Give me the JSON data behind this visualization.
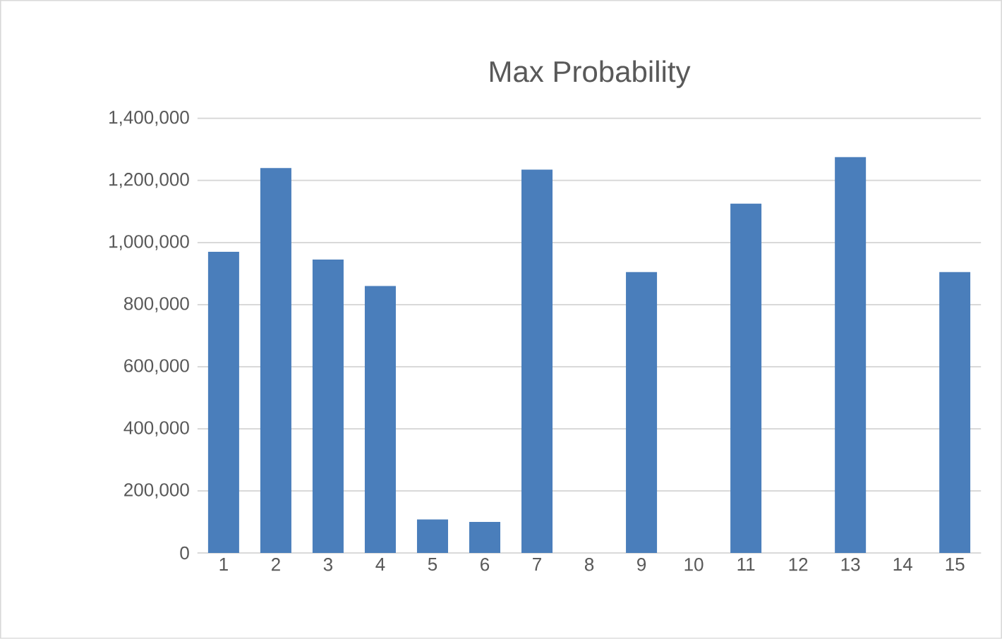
{
  "chart_data": {
    "type": "bar",
    "title": "Max Probability",
    "categories": [
      "1",
      "2",
      "3",
      "4",
      "5",
      "6",
      "7",
      "8",
      "9",
      "10",
      "11",
      "12",
      "13",
      "14",
      "15"
    ],
    "values": [
      970000,
      1240000,
      945000,
      860000,
      108000,
      100000,
      1235000,
      null,
      905000,
      null,
      1125000,
      null,
      1275000,
      null,
      905000
    ],
    "color": "#4a7ebb",
    "ylim": [
      0,
      1400000
    ],
    "yticks": [
      {
        "value": 0,
        "label": "0"
      },
      {
        "value": 200000,
        "label": "200,000"
      },
      {
        "value": 400000,
        "label": "400,000"
      },
      {
        "value": 600000,
        "label": "600,000"
      },
      {
        "value": 800000,
        "label": "800,000"
      },
      {
        "value": 1000000,
        "label": "1,000,000"
      },
      {
        "value": 1200000,
        "label": "1,200,000"
      },
      {
        "value": 1400000,
        "label": "1,400,000"
      }
    ],
    "grid": "y"
  }
}
